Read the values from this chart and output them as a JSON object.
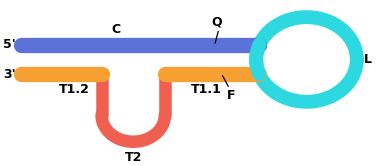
{
  "blue_color": "#5b72d8",
  "orange_color": "#f5a030",
  "red_color": "#f06050",
  "cyan_color": "#2dd8e0",
  "bg_color": "#ffffff",
  "label_5prime": "5'",
  "label_3prime": "3'",
  "label_C": "C",
  "label_Q": "Q",
  "label_T12": "T1.2",
  "label_T11": "T1.1",
  "label_T2": "T2",
  "label_F": "F",
  "label_L": "L",
  "figsize": [
    3.78,
    1.66
  ],
  "dpi": 100,
  "lw_main": 11,
  "lw_loop": 9,
  "lw_cyan": 10,
  "font_size": 9
}
